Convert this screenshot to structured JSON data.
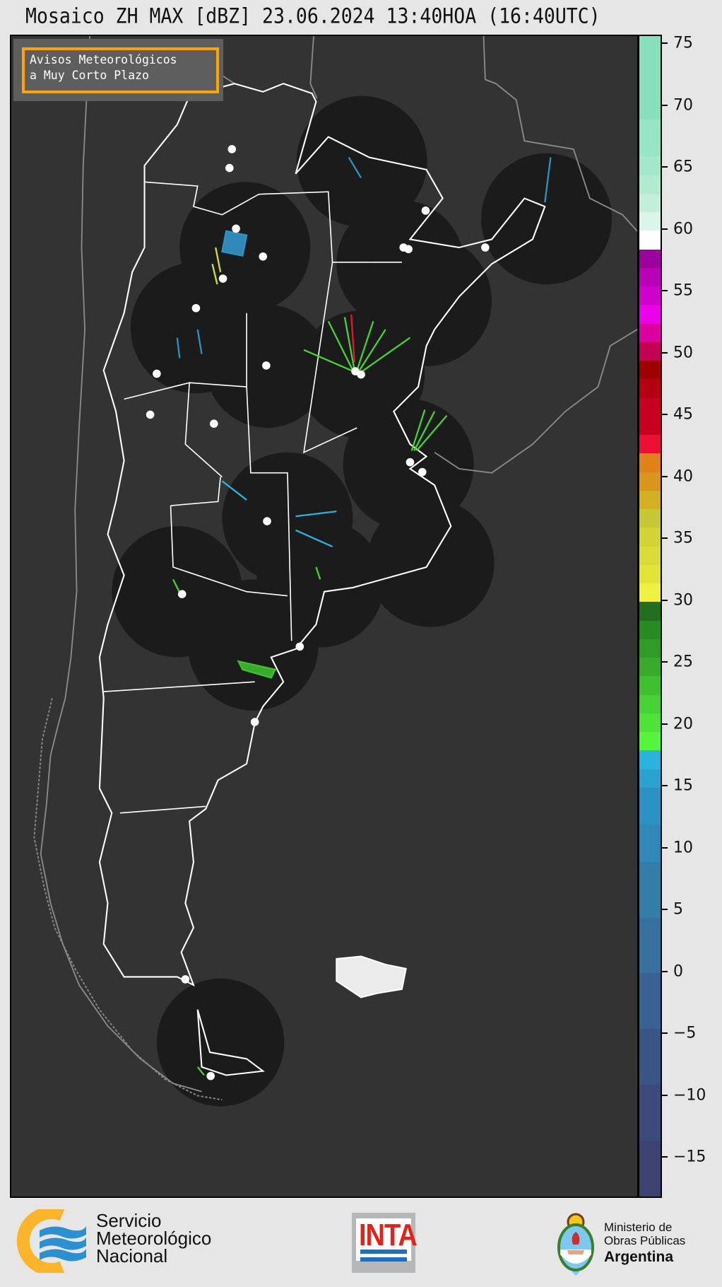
{
  "title": "Mosaico ZH MAX [dBZ] 23.06.2024 13:40HOA (16:40UTC)",
  "legend_box": {
    "line1": "Avisos Meteorológicos",
    "line2": "a Muy Corto Plazo",
    "border_color": "#ffa500"
  },
  "colorbar": {
    "unit": "dBZ",
    "range": [
      -18.3,
      75.7
    ],
    "ticks": [
      75,
      70,
      65,
      60,
      55,
      50,
      45,
      40,
      35,
      30,
      25,
      20,
      15,
      10,
      5,
      0,
      -5,
      -10,
      -15
    ],
    "tick_labels": [
      "75",
      "70",
      "65",
      "60",
      "55",
      "50",
      "45",
      "40",
      "35",
      "30",
      "25",
      "20",
      "15",
      "10",
      "5",
      "0",
      "−5",
      "−10",
      "−15"
    ],
    "bands": [
      [
        -18.3,
        -13.5,
        "#3d4270"
      ],
      [
        -13.5,
        -9,
        "#3b4a7a"
      ],
      [
        -9,
        -4.5,
        "#395586"
      ],
      [
        -4.5,
        0,
        "#376292"
      ],
      [
        0,
        4.5,
        "#36709e"
      ],
      [
        4.5,
        9,
        "#337ea9"
      ],
      [
        9,
        12,
        "#2f88b8"
      ],
      [
        12,
        15,
        "#2a93c3"
      ],
      [
        15,
        16.5,
        "#28a3cf"
      ],
      [
        16.5,
        18,
        "#2ab3dc"
      ],
      [
        18,
        19.5,
        "#55f53a"
      ],
      [
        19.5,
        21,
        "#4de437"
      ],
      [
        21,
        22.5,
        "#46d232"
      ],
      [
        22.5,
        24,
        "#40c02e"
      ],
      [
        24,
        25.5,
        "#38ac2a"
      ],
      [
        25.5,
        27,
        "#309c26"
      ],
      [
        27,
        28.5,
        "#278a23"
      ],
      [
        28.5,
        30,
        "#22701e"
      ],
      [
        30,
        31.5,
        "#f0f040"
      ],
      [
        31.5,
        33,
        "#e2e43a"
      ],
      [
        33,
        34.5,
        "#d9dc38"
      ],
      [
        34.5,
        36,
        "#d2d436"
      ],
      [
        36,
        37.5,
        "#c5c830"
      ],
      [
        37.5,
        39,
        "#d2b020"
      ],
      [
        39,
        40.5,
        "#d9961a"
      ],
      [
        40.5,
        42,
        "#e08218"
      ],
      [
        42,
        43.5,
        "#ee1032"
      ],
      [
        43.5,
        46.5,
        "#c80020"
      ],
      [
        46.5,
        48,
        "#b40010"
      ],
      [
        48,
        49.5,
        "#9c0000"
      ],
      [
        49.5,
        51,
        "#c40054"
      ],
      [
        51,
        52.5,
        "#dc00a0"
      ],
      [
        52.5,
        54,
        "#ec00ec"
      ],
      [
        54,
        55.5,
        "#d000cc"
      ],
      [
        55.5,
        57,
        "#b800b8"
      ],
      [
        57,
        58.5,
        "#9c009c"
      ],
      [
        58.5,
        60,
        "#ffffff"
      ],
      [
        60,
        61.5,
        "#dcf5ea"
      ],
      [
        61.5,
        63,
        "#c4eedc"
      ],
      [
        63,
        64.5,
        "#b0eacf"
      ],
      [
        64.5,
        66,
        "#a4e8cc"
      ],
      [
        66,
        69,
        "#98e4c6"
      ],
      [
        69,
        75.7,
        "#88dfbd"
      ]
    ]
  },
  "map": {
    "background": "#333333",
    "radar_coverage_color": "#1b1b1b",
    "border_color": "#ffffff",
    "coast_color": "#8a8a8a",
    "radar_site_color": "#ffffff"
  },
  "footer": {
    "smn": {
      "line1": "Servicio",
      "line2": "Meteorológico",
      "line3": "Nacional"
    },
    "inta": {
      "label": "INTA"
    },
    "ministerio": {
      "line1": "Ministerio de",
      "line2": "Obras Públicas",
      "line3": "Argentina"
    }
  }
}
